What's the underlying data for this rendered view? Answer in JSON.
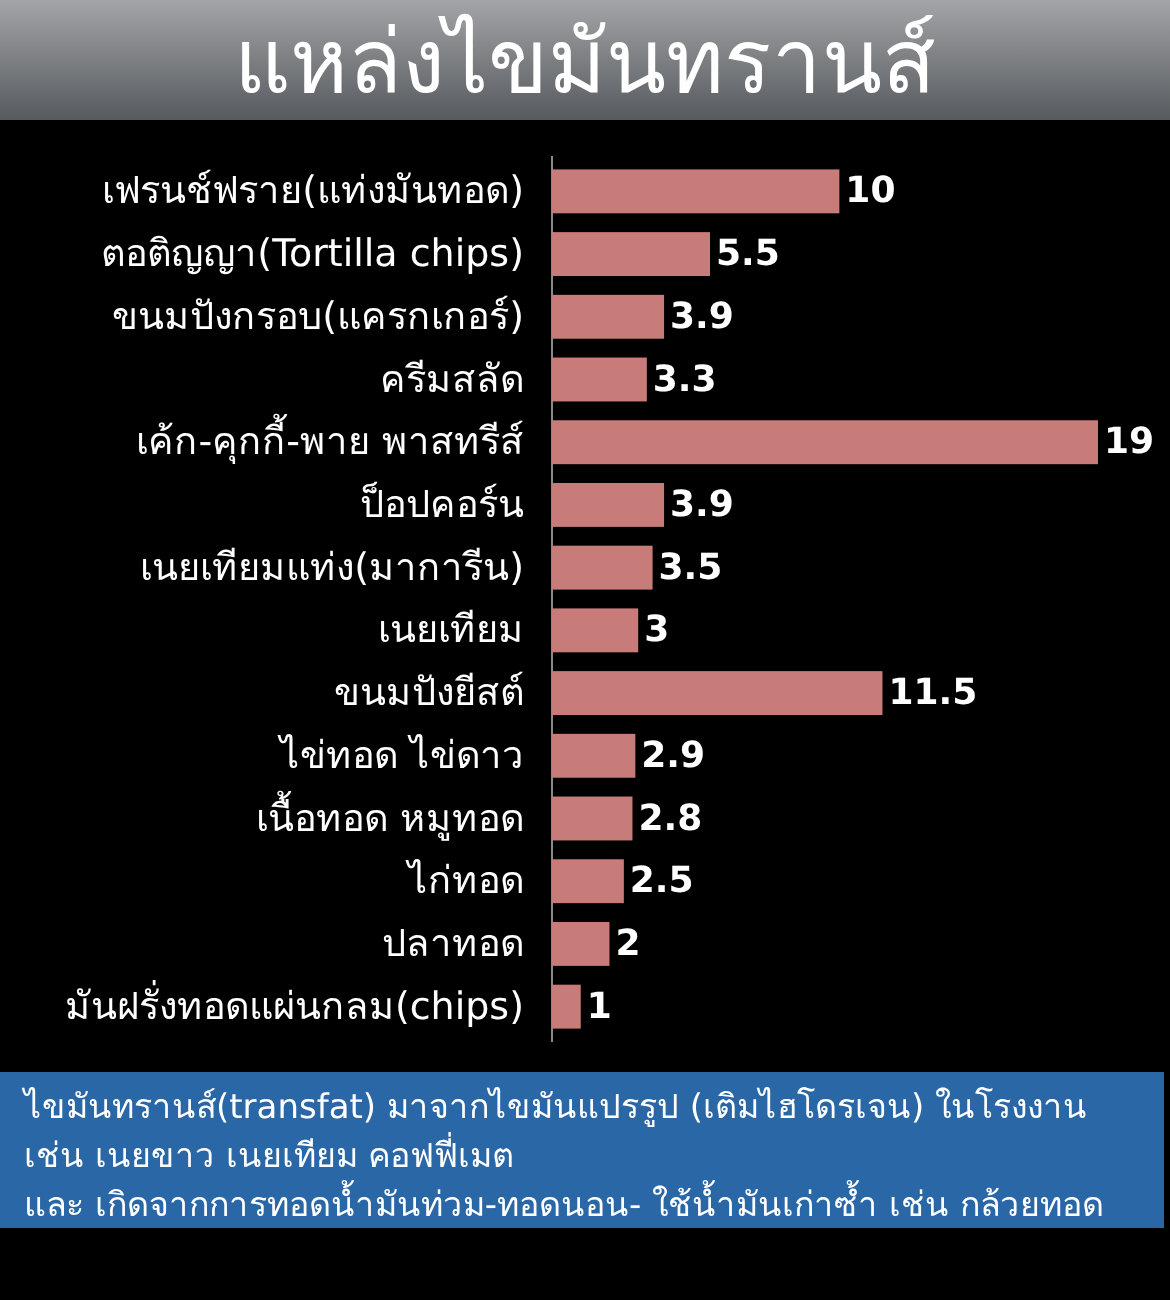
{
  "chart_data": {
    "type": "bar",
    "orientation": "horizontal",
    "title": "แหล่งไขมันทรานส์",
    "categories": [
      "เฟรนช์ฟราย(แท่งมันทอด)",
      "ตอติญญา(Tortilla chips)",
      "ขนมปังกรอบ(แครกเกอร์)",
      "ครีมสลัด",
      "เค้ก-คุกกี้-พาย พาสทรีส์",
      "ป็อปคอร์น",
      "เนยเทียมแท่ง(มาการีน)",
      "เนยเทียม",
      "ขนมปังยีสต์",
      "ไข่ทอด ไข่ดาว",
      "เนื้อทอด หมูทอด",
      "ไก่ทอด",
      "ปลาทอด",
      "มันฝรั่งทอดแผ่นกลม(chips)"
    ],
    "values": [
      10,
      5.5,
      3.9,
      3.3,
      19,
      3.9,
      3.5,
      3,
      11.5,
      2.9,
      2.8,
      2.5,
      2,
      1
    ],
    "color": "#c77c7a",
    "data_labels": true,
    "annotations": [
      "ไขมันทรานส์(transfat) มาจากไขมันแปรรูป (เติมไฮโดรเจน) ในโรงงาน",
      "เช่น เนยขาว เนยเทียม คอฟฟี่เมต",
      "และ เกิดจากการทอดน้ำมันท่วม-ทอดนอน- ใช้น้ำมันเก่าซ้ำ เช่น กล้วยทอด"
    ]
  }
}
